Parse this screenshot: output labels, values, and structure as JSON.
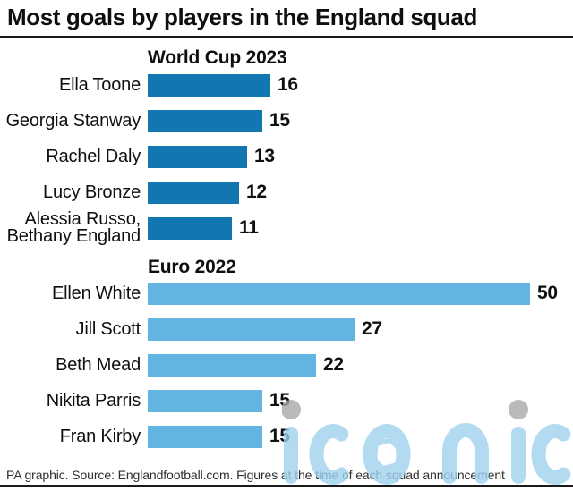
{
  "title": "Most goals by players in the England squad",
  "footer": "PA graphic. Source: Englandfootball.com. Figures at the time of each squad announcement",
  "watermark": {
    "text": "iconic"
  },
  "colors": {
    "text": "#0f0f0f",
    "rule": "#1a1a1a",
    "footer_text": "#2e2e2e",
    "worldcup_bar": "#1277b0",
    "euro_bar": "#63b5e1",
    "watermark_blue": "#9fd3f0",
    "watermark_gray": "#a9a9a9"
  },
  "chart_data": [
    {
      "type": "bar",
      "orientation": "horizontal",
      "title": "World Cup 2023",
      "categories": [
        "Ella Toone",
        "Georgia Stanway",
        "Rachel Daly",
        "Lucy Bronze",
        [
          "Alessia Russo,",
          "Bethany England"
        ]
      ],
      "values": [
        16,
        15,
        13,
        12,
        11
      ],
      "bar_color": "#1277b0",
      "xlim": [
        0,
        50
      ],
      "grid": false,
      "value_labels": "end-of-bar"
    },
    {
      "type": "bar",
      "orientation": "horizontal",
      "title": "Euro 2022",
      "categories": [
        "Ellen White",
        "Jill Scott",
        "Beth Mead",
        "Nikita Parris",
        "Fran Kirby"
      ],
      "values": [
        50,
        27,
        22,
        15,
        15
      ],
      "bar_color": "#63b5e1",
      "xlim": [
        0,
        50
      ],
      "grid": false,
      "value_labels": "end-of-bar"
    }
  ]
}
